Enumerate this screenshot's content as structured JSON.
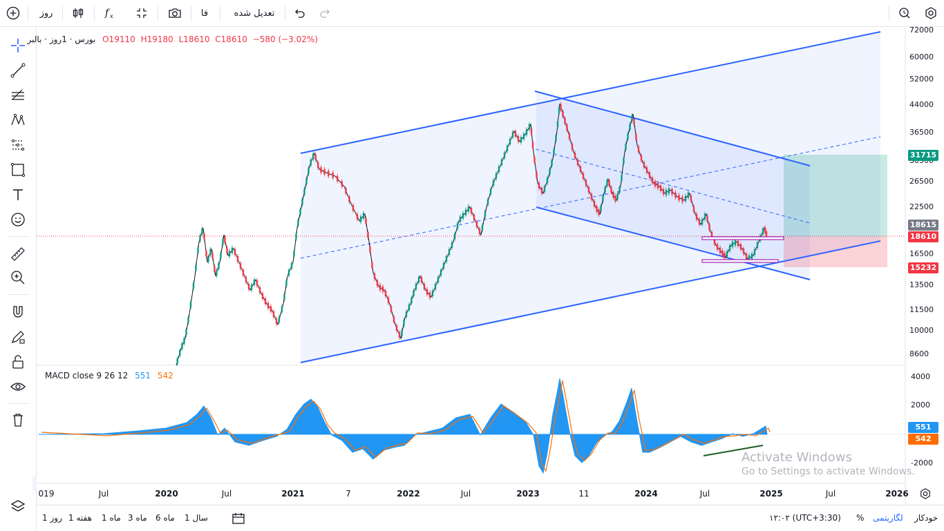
{
  "toolbar": {
    "timeframe": "روز",
    "adjusted_label": "تعدیل شده",
    "fa_label": "فا"
  },
  "legend": {
    "symbol": "بورس · 1روز · بالبر",
    "open": "O19110",
    "high": "H19180",
    "low": "L18610",
    "close": "C18610",
    "change": "−580 (−3.02%)"
  },
  "macd": {
    "title": "MACD close 9 26 12",
    "macd_value": "551",
    "signal_value": "542"
  },
  "price_axis": [
    "72000",
    "60000",
    "52000",
    "44000",
    "36500",
    "30500",
    "26500",
    "22500",
    "16500",
    "13500",
    "11500",
    "10000",
    "8600"
  ],
  "macd_axis": [
    "4000",
    "2000",
    "-2000"
  ],
  "price_tags": {
    "target": "31715",
    "crosshair": "18615",
    "last": "18610",
    "stop": "15232"
  },
  "time_axis": [
    "019",
    "Jul",
    "2020",
    "Jul",
    "2021",
    "7",
    "2022",
    "Jul",
    "2023",
    "11",
    "2024",
    "Jul",
    "2025",
    "Jul",
    "2026"
  ],
  "bottom": {
    "ranges": [
      "1 روز",
      "1 هفته",
      "1 ماه",
      "3 ماه",
      "6 ماه",
      "1 سال"
    ],
    "time": "۱۲:۰۲ (UTC+3:30)",
    "percent": "%",
    "log": "لگاریتمی",
    "auto": "خودکار"
  },
  "watermark": {
    "title": "Activate Windows",
    "sub": "Go to Settings to activate Windows."
  },
  "colors": {
    "up": "#089981",
    "down": "#f23645",
    "channel": "#2962ff",
    "macd_hist": "#2196f3",
    "signal": "#ff6d00"
  }
}
